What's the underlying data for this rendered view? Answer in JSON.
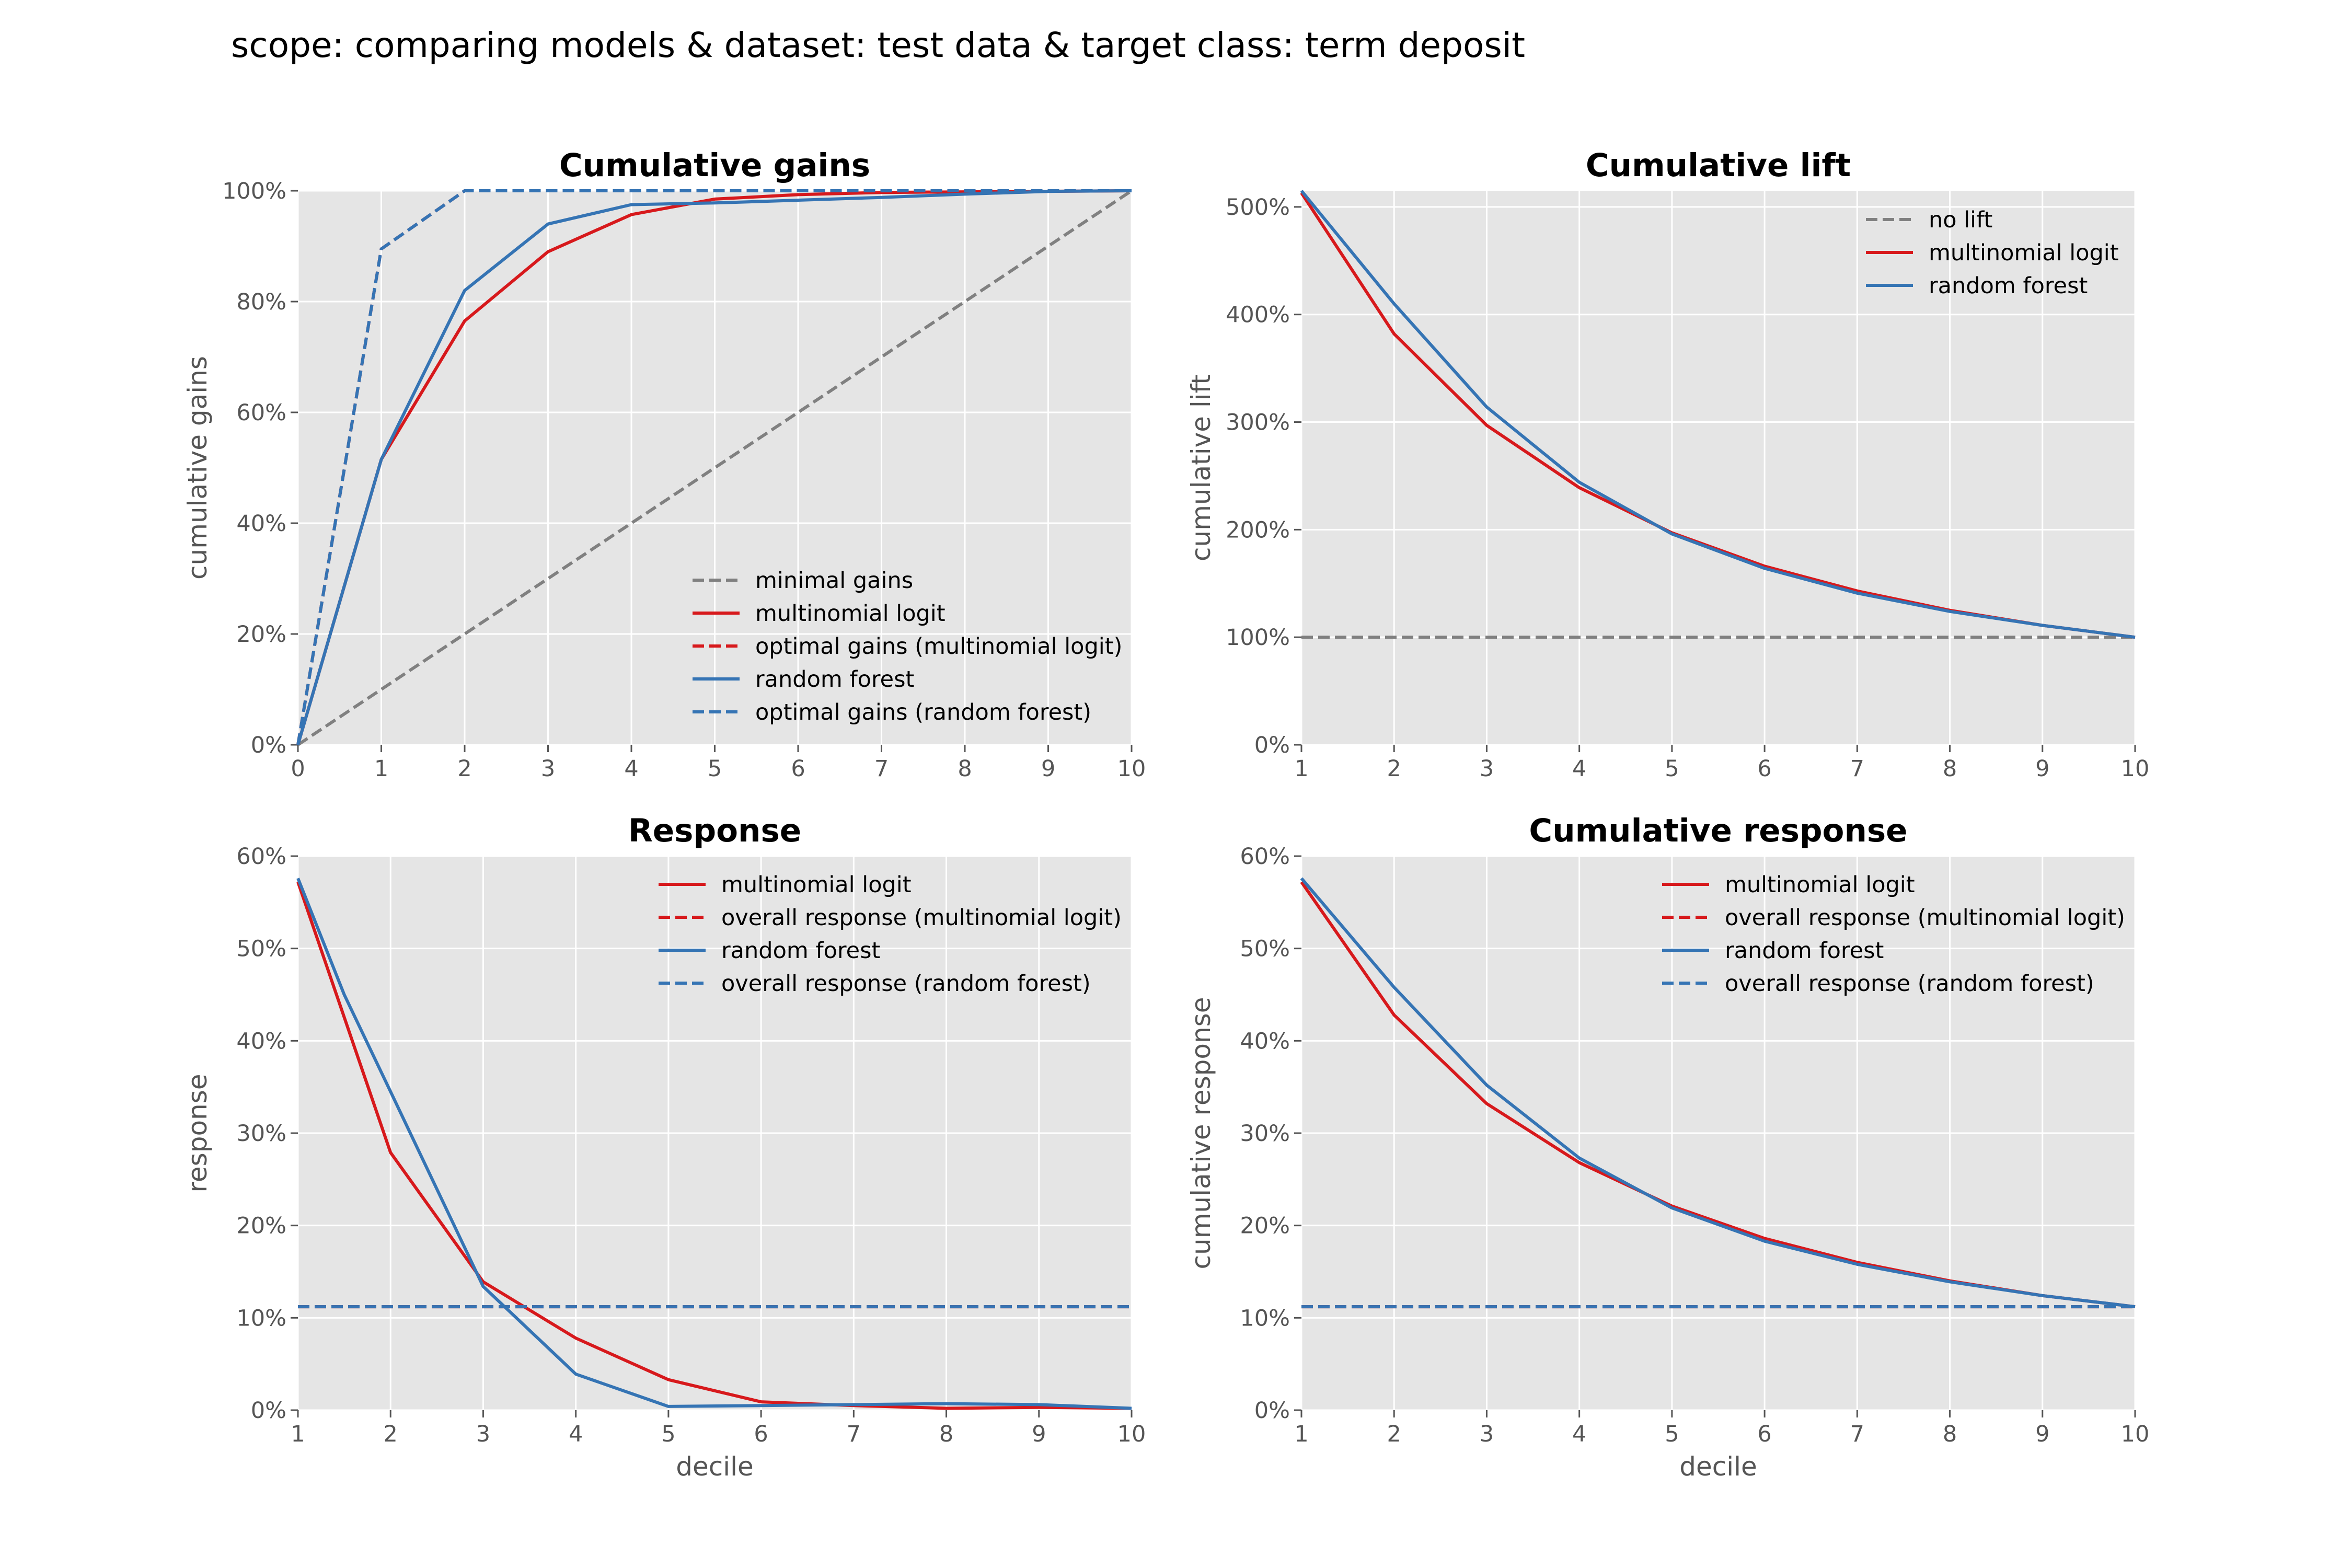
{
  "title": "scope: comparing models & dataset: test data & target class: term deposit",
  "colors": {
    "red": "#d7191c",
    "blue": "#3574b4",
    "gray": "#808080",
    "panel_bg": "#e5e5e5",
    "grid": "#ffffff"
  },
  "chart_data": [
    {
      "type": "line",
      "title": "Cumulative gains",
      "xlabel": "",
      "ylabel": "cumulative gains",
      "x_ticks": [
        0,
        1,
        2,
        3,
        4,
        5,
        6,
        7,
        8,
        9,
        10
      ],
      "y_ticks": [
        "0%",
        "20%",
        "40%",
        "60%",
        "80%",
        "100%"
      ],
      "xlim": [
        0,
        10
      ],
      "ylim": [
        0,
        1
      ],
      "grid": true,
      "legend_position": "lower-right",
      "series": [
        {
          "name": "minimal gains",
          "color": "#808080",
          "dashed": true,
          "x": [
            0,
            10
          ],
          "y": [
            0,
            1.0
          ]
        },
        {
          "name": "multinomial logit",
          "color": "#d7191c",
          "dashed": false,
          "x": [
            0,
            1,
            2,
            3,
            4,
            5,
            6,
            7,
            8,
            9,
            10
          ],
          "y": [
            0,
            0.515,
            0.765,
            0.89,
            0.957,
            0.985,
            0.993,
            0.997,
            0.998,
            0.999,
            1.0
          ]
        },
        {
          "name": "optimal gains (multinomial logit)",
          "color": "#d7191c",
          "dashed": true,
          "x": [
            0,
            1,
            2,
            3,
            4,
            5,
            6,
            7,
            8,
            9,
            10
          ],
          "y": [
            0,
            0.895,
            1.0,
            1.0,
            1.0,
            1.0,
            1.0,
            1.0,
            1.0,
            1.0,
            1.0
          ]
        },
        {
          "name": "random forest",
          "color": "#3574b4",
          "dashed": false,
          "x": [
            0,
            1,
            2,
            3,
            4,
            5,
            6,
            7,
            8,
            9,
            10
          ],
          "y": [
            0,
            0.515,
            0.82,
            0.94,
            0.975,
            0.978,
            0.983,
            0.988,
            0.994,
            0.999,
            1.0
          ]
        },
        {
          "name": "optimal gains (random forest)",
          "color": "#3574b4",
          "dashed": true,
          "x": [
            0,
            1,
            2,
            3,
            4,
            5,
            6,
            7,
            8,
            9,
            10
          ],
          "y": [
            0,
            0.895,
            1.0,
            1.0,
            1.0,
            1.0,
            1.0,
            1.0,
            1.0,
            1.0,
            1.0
          ]
        }
      ]
    },
    {
      "type": "line",
      "title": "Cumulative lift",
      "xlabel": "",
      "ylabel": "cumulative lift",
      "x_ticks": [
        1,
        2,
        3,
        4,
        5,
        6,
        7,
        8,
        9,
        10
      ],
      "y_ticks": [
        "0%",
        "100%",
        "200%",
        "300%",
        "400%",
        "500%"
      ],
      "xlim": [
        1,
        10
      ],
      "ylim": [
        0,
        5.15
      ],
      "grid": true,
      "legend_position": "top-right",
      "series": [
        {
          "name": "no lift",
          "color": "#808080",
          "dashed": true,
          "x": [
            1,
            10
          ],
          "y": [
            1.0,
            1.0
          ]
        },
        {
          "name": "multinomial logit",
          "color": "#d7191c",
          "dashed": false,
          "x": [
            1,
            2,
            3,
            4,
            5,
            6,
            7,
            8,
            9,
            10
          ],
          "y": [
            5.13,
            3.82,
            2.97,
            2.39,
            1.97,
            1.66,
            1.43,
            1.25,
            1.11,
            1.0
          ]
        },
        {
          "name": "random forest",
          "color": "#3574b4",
          "dashed": false,
          "x": [
            1,
            2,
            3,
            4,
            5,
            6,
            7,
            8,
            9,
            10
          ],
          "y": [
            5.15,
            4.1,
            3.14,
            2.44,
            1.96,
            1.64,
            1.41,
            1.24,
            1.11,
            1.0
          ]
        }
      ]
    },
    {
      "type": "line",
      "title": "Response",
      "xlabel": "decile",
      "ylabel": "response",
      "x_ticks": [
        1,
        2,
        3,
        4,
        5,
        6,
        7,
        8,
        9,
        10
      ],
      "y_ticks": [
        "0%",
        "10%",
        "20%",
        "30%",
        "40%",
        "50%",
        "60%"
      ],
      "xlim": [
        1,
        10
      ],
      "ylim": [
        0,
        0.6
      ],
      "grid": true,
      "legend_position": "top-right",
      "series": [
        {
          "name": "multinomial logit",
          "color": "#d7191c",
          "dashed": false,
          "x": [
            1,
            2,
            3,
            4,
            5,
            6,
            7,
            8,
            9,
            10
          ],
          "y": [
            0.572,
            0.279,
            0.139,
            0.078,
            0.033,
            0.009,
            0.005,
            0.002,
            0.003,
            0.002
          ]
        },
        {
          "name": "overall response (multinomial logit)",
          "color": "#d7191c",
          "dashed": true,
          "x": [
            1,
            10
          ],
          "y": [
            0.112,
            0.112
          ]
        },
        {
          "name": "random forest",
          "color": "#3574b4",
          "dashed": false,
          "x": [
            1,
            1.5,
            2,
            3,
            4,
            5,
            6,
            7,
            8,
            9,
            10
          ],
          "y": [
            0.576,
            0.45,
            0.345,
            0.134,
            0.039,
            0.004,
            0.005,
            0.006,
            0.007,
            0.006,
            0.002
          ]
        },
        {
          "name": "overall response (random forest)",
          "color": "#3574b4",
          "dashed": true,
          "x": [
            1,
            10
          ],
          "y": [
            0.112,
            0.112
          ]
        }
      ]
    },
    {
      "type": "line",
      "title": "Cumulative response",
      "xlabel": "decile",
      "ylabel": "cumulative response",
      "x_ticks": [
        1,
        2,
        3,
        4,
        5,
        6,
        7,
        8,
        9,
        10
      ],
      "y_ticks": [
        "0%",
        "10%",
        "20%",
        "30%",
        "40%",
        "50%",
        "60%"
      ],
      "xlim": [
        1,
        10
      ],
      "ylim": [
        0,
        0.6
      ],
      "grid": true,
      "legend_position": "top-right",
      "series": [
        {
          "name": "multinomial logit",
          "color": "#d7191c",
          "dashed": false,
          "x": [
            1,
            2,
            3,
            4,
            5,
            6,
            7,
            8,
            9,
            10
          ],
          "y": [
            0.572,
            0.428,
            0.332,
            0.268,
            0.221,
            0.186,
            0.16,
            0.14,
            0.124,
            0.112
          ]
        },
        {
          "name": "overall response (multinomial logit)",
          "color": "#d7191c",
          "dashed": true,
          "x": [
            1,
            10
          ],
          "y": [
            0.112,
            0.112
          ]
        },
        {
          "name": "random forest",
          "color": "#3574b4",
          "dashed": false,
          "x": [
            1,
            2,
            3,
            4,
            5,
            6,
            7,
            8,
            9,
            10
          ],
          "y": [
            0.576,
            0.458,
            0.352,
            0.273,
            0.219,
            0.183,
            0.158,
            0.139,
            0.124,
            0.112
          ]
        },
        {
          "name": "overall response (random forest)",
          "color": "#3574b4",
          "dashed": true,
          "x": [
            1,
            10
          ],
          "y": [
            0.112,
            0.112
          ]
        }
      ]
    }
  ]
}
